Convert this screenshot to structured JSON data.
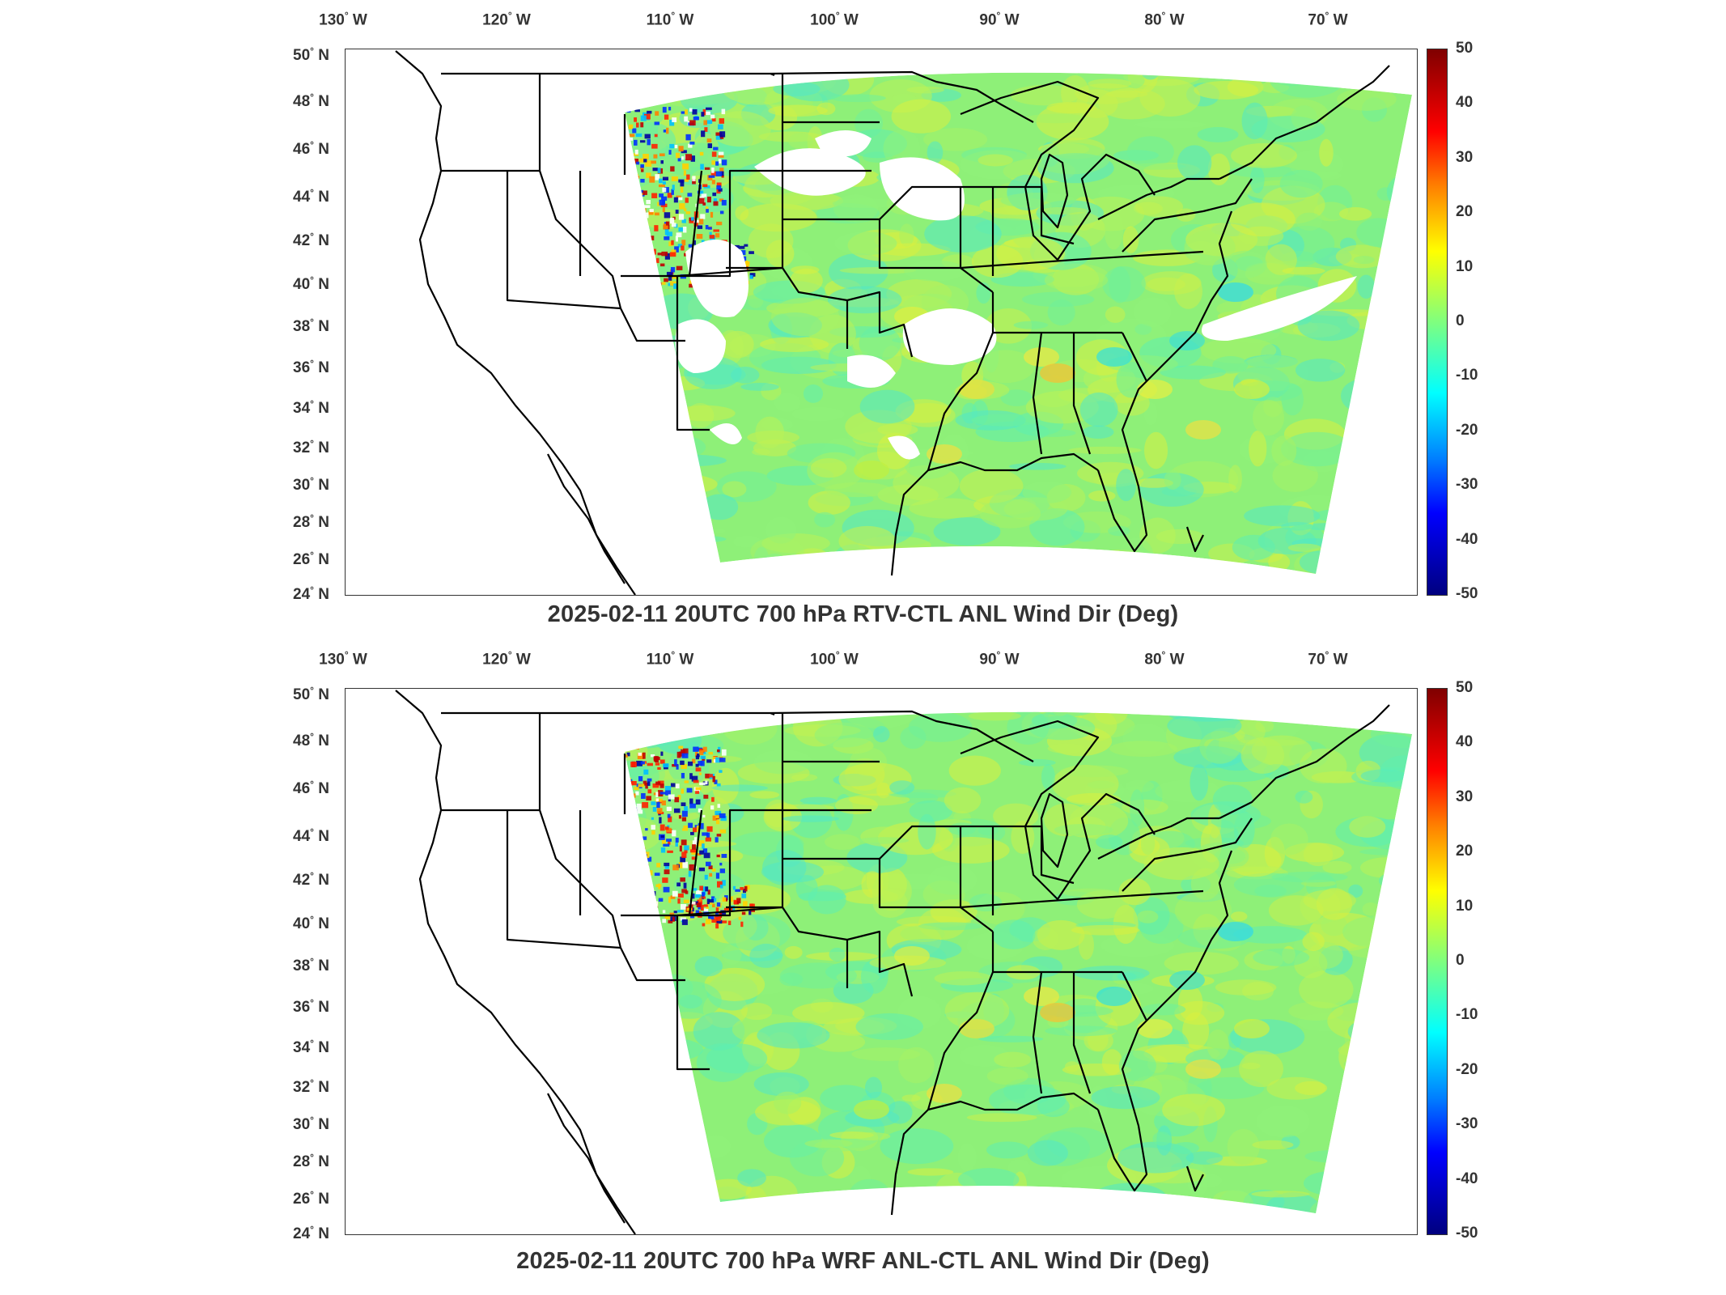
{
  "panels": [
    {
      "title": "2025-02-11 20UTC 700 hPa RTV-CTL ANL Wind Dir (Deg)",
      "has_data_gaps": true
    },
    {
      "title": "2025-02-11 20UTC 700 hPa WRF ANL-CTL ANL Wind Dir (Deg)",
      "has_data_gaps": false
    }
  ],
  "longitude_labels": [
    "130",
    "120",
    "110",
    "100",
    "90",
    "80",
    "70"
  ],
  "longitude_suffix": "W",
  "latitude_labels": [
    "50",
    "48",
    "46",
    "44",
    "42",
    "40",
    "38",
    "36",
    "34",
    "32",
    "30",
    "28",
    "26",
    "24"
  ],
  "latitude_suffix": "N",
  "colorbar": {
    "ticks": [
      "50",
      "40",
      "30",
      "20",
      "10",
      "0",
      "-10",
      "-20",
      "-30",
      "-40",
      "-50"
    ],
    "range": [
      -50,
      50
    ],
    "colormap": "jet"
  },
  "colors": {
    "field_base": "#8ef078",
    "coastline": "#000000",
    "frame": "#333333"
  }
}
